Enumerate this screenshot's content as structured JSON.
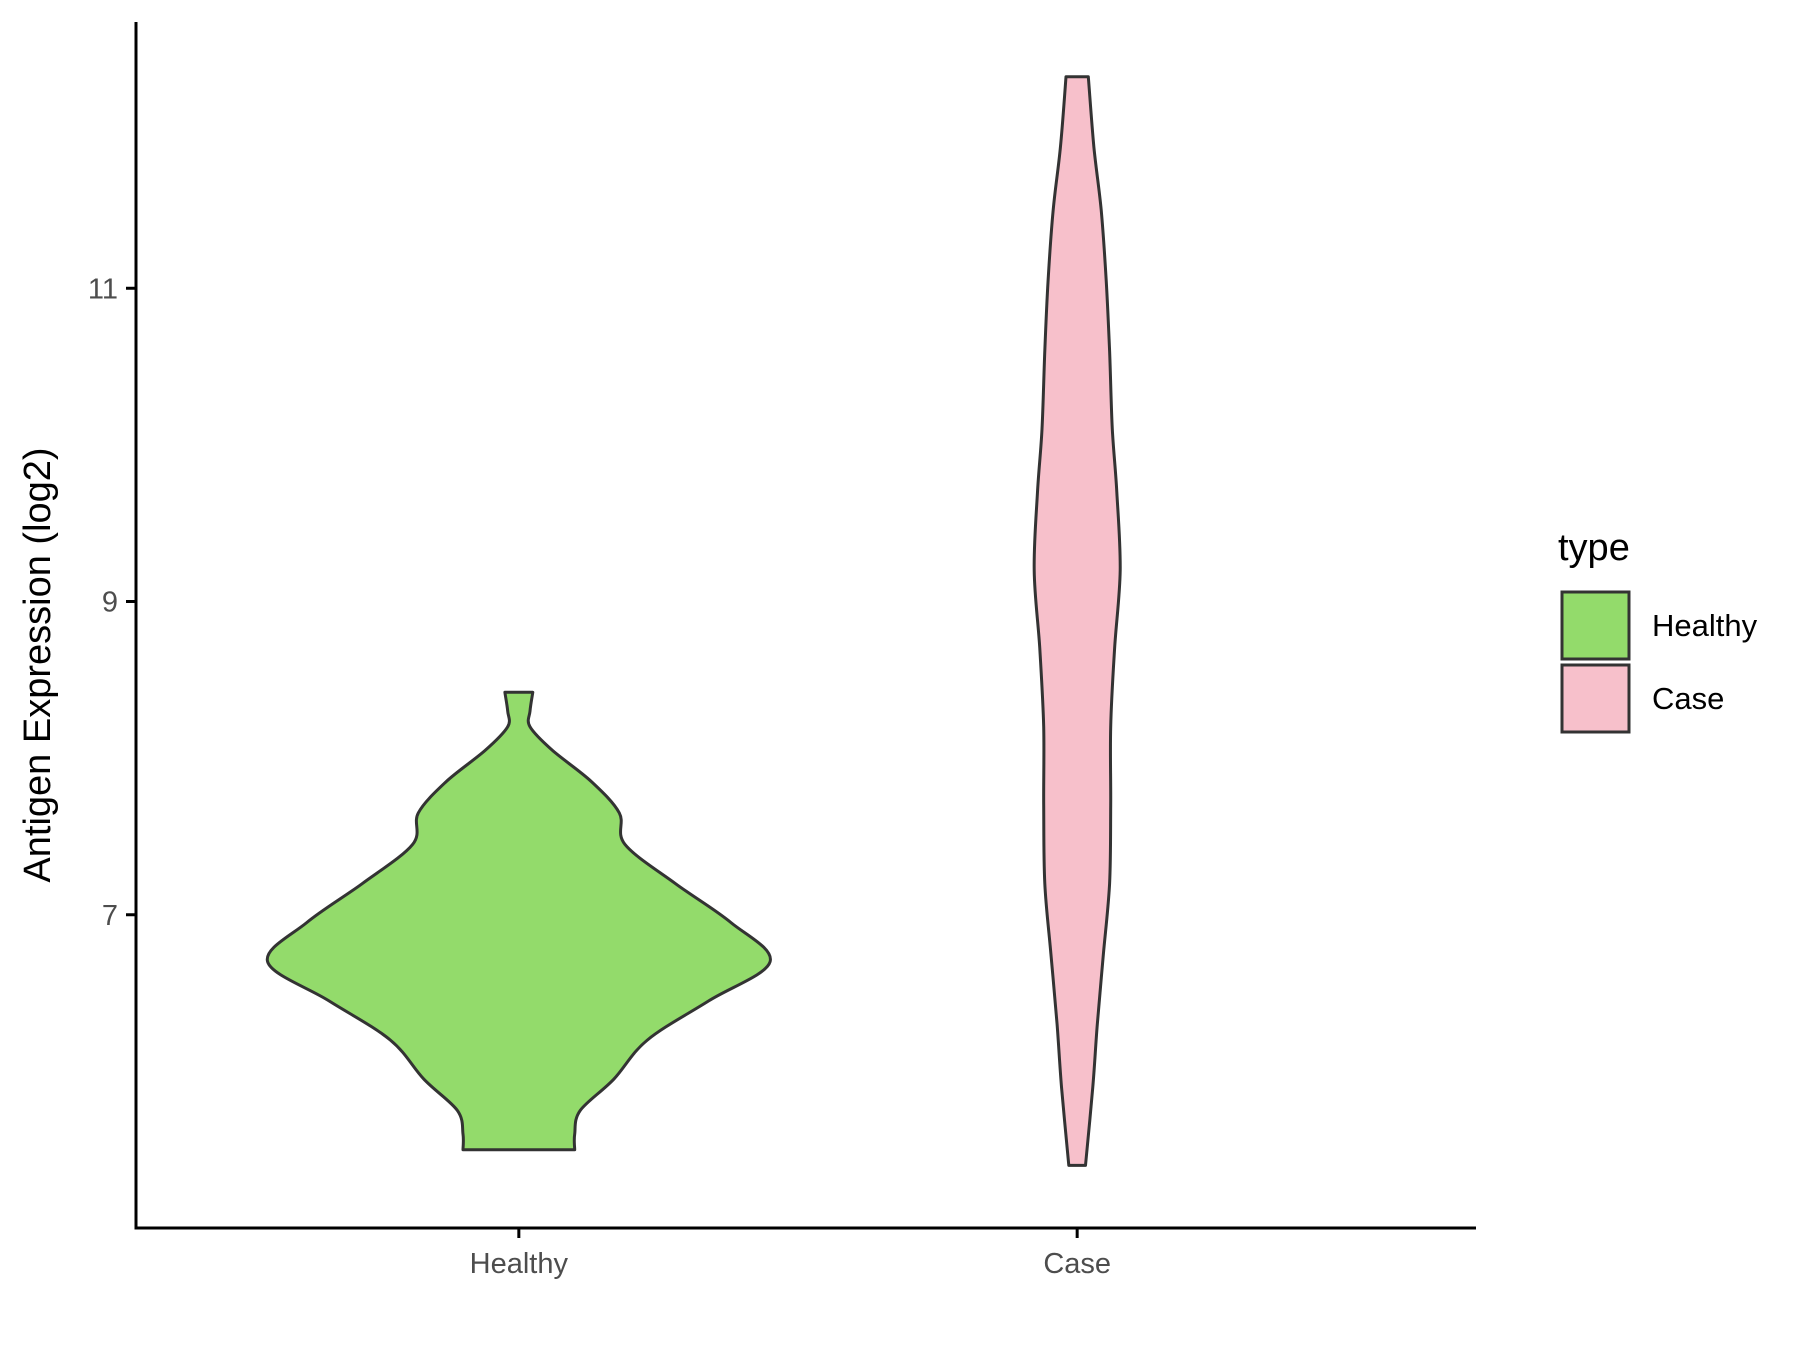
{
  "chart_data": {
    "type": "violin",
    "title": "",
    "xlabel": "",
    "ylabel": "Antigen Expression (log2)",
    "categories": [
      "Healthy",
      "Case"
    ],
    "yticks": [
      7,
      9,
      11
    ],
    "ylim": [
      5.0,
      12.7
    ],
    "grid": false,
    "legend": {
      "title": "type",
      "placement": "right",
      "items": [
        {
          "label": "Healthy",
          "color": "#93DB6B"
        },
        {
          "label": "Case",
          "color": "#F7C0CB"
        }
      ]
    },
    "series": [
      {
        "name": "Healthy",
        "color": "#93DB6B",
        "profile": [
          {
            "y": 5.5,
            "half_width": 0.1
          },
          {
            "y": 5.6,
            "half_width": 0.1
          },
          {
            "y": 5.75,
            "half_width": 0.11
          },
          {
            "y": 5.95,
            "half_width": 0.17
          },
          {
            "y": 6.2,
            "half_width": 0.23
          },
          {
            "y": 6.45,
            "half_width": 0.34
          },
          {
            "y": 6.7,
            "half_width": 0.45
          },
          {
            "y": 6.95,
            "half_width": 0.38
          },
          {
            "y": 7.2,
            "half_width": 0.28
          },
          {
            "y": 7.45,
            "half_width": 0.19
          },
          {
            "y": 7.65,
            "half_width": 0.18
          },
          {
            "y": 7.85,
            "half_width": 0.13
          },
          {
            "y": 8.05,
            "half_width": 0.06
          },
          {
            "y": 8.2,
            "half_width": 0.02
          },
          {
            "y": 8.3,
            "half_width": 0.02
          },
          {
            "y": 8.42,
            "half_width": 0.025
          }
        ]
      },
      {
        "name": "Case",
        "color": "#F7C0CB",
        "profile": [
          {
            "y": 5.4,
            "half_width": 0.015
          },
          {
            "y": 5.9,
            "half_width": 0.028
          },
          {
            "y": 6.3,
            "half_width": 0.036
          },
          {
            "y": 6.75,
            "half_width": 0.047
          },
          {
            "y": 7.2,
            "half_width": 0.058
          },
          {
            "y": 7.7,
            "half_width": 0.06
          },
          {
            "y": 8.2,
            "half_width": 0.06
          },
          {
            "y": 8.7,
            "half_width": 0.067
          },
          {
            "y": 9.2,
            "half_width": 0.077
          },
          {
            "y": 9.7,
            "half_width": 0.071
          },
          {
            "y": 10.1,
            "half_width": 0.063
          },
          {
            "y": 10.6,
            "half_width": 0.058
          },
          {
            "y": 11.05,
            "half_width": 0.052
          },
          {
            "y": 11.5,
            "half_width": 0.043
          },
          {
            "y": 11.9,
            "half_width": 0.03
          },
          {
            "y": 12.35,
            "half_width": 0.02
          }
        ]
      }
    ]
  }
}
